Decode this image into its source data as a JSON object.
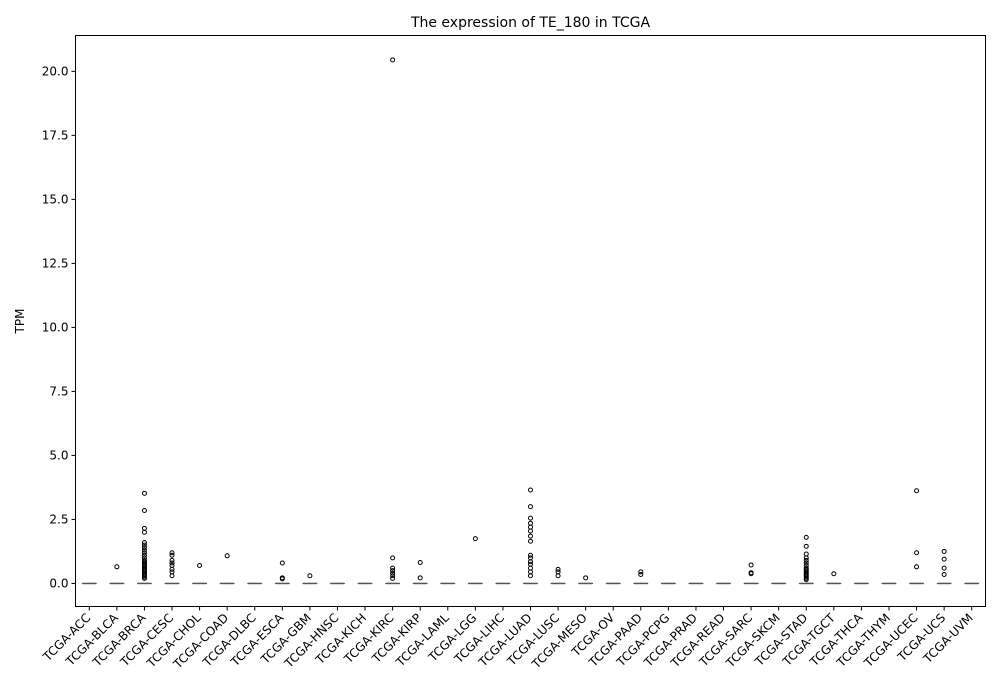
{
  "chart_data": {
    "type": "box",
    "title": "The expression of TE_180 in TCGA",
    "xlabel": "",
    "ylabel": "TPM",
    "ylim": [
      -0.9,
      21.4
    ],
    "yticks": [
      "0.0",
      "2.5",
      "5.0",
      "7.5",
      "10.0",
      "12.5",
      "15.0",
      "17.5",
      "20.0"
    ],
    "grid": false,
    "legend": "none",
    "colors": {
      "box": "#1f77b4",
      "median": "#555555",
      "flier": "#000000",
      "axes": "#000000"
    },
    "categories": [
      "TCGA-ACC",
      "TCGA-BLCA",
      "TCGA-BRCA",
      "TCGA-CESC",
      "TCGA-CHOL",
      "TCGA-COAD",
      "TCGA-DLBC",
      "TCGA-ESCA",
      "TCGA-GBM",
      "TCGA-HNSC",
      "TCGA-KICH",
      "TCGA-KIRC",
      "TCGA-KIRP",
      "TCGA-LAML",
      "TCGA-LGG",
      "TCGA-LIHC",
      "TCGA-LUAD",
      "TCGA-LUSC",
      "TCGA-MESO",
      "TCGA-OV",
      "TCGA-PAAD",
      "TCGA-PCPG",
      "TCGA-PRAD",
      "TCGA-READ",
      "TCGA-SARC",
      "TCGA-SKCM",
      "TCGA-STAD",
      "TCGA-TGCT",
      "TCGA-THCA",
      "TCGA-THYM",
      "TCGA-UCEC",
      "TCGA-UCS",
      "TCGA-UVM"
    ],
    "boxes": [
      {
        "median": 0,
        "q1": 0,
        "q3": 0,
        "whislo": 0,
        "whishi": 0,
        "fliers": []
      },
      {
        "median": 0,
        "q1": 0,
        "q3": 0,
        "whislo": 0,
        "whishi": 0,
        "fliers": [
          0.65
        ]
      },
      {
        "median": 0,
        "q1": 0,
        "q3": 0,
        "whislo": 0,
        "whishi": 0,
        "fliers": [
          3.52,
          2.85,
          2.15,
          2.0,
          1.6,
          1.5,
          1.4,
          1.3,
          1.2,
          1.1,
          1.0,
          0.9,
          0.85,
          0.8,
          0.75,
          0.7,
          0.65,
          0.6,
          0.55,
          0.5,
          0.45,
          0.4,
          0.35,
          0.3,
          0.25,
          0.2
        ]
      },
      {
        "median": 0,
        "q1": 0,
        "q3": 0,
        "whislo": 0,
        "whishi": 0,
        "fliers": [
          1.2,
          1.1,
          0.9,
          0.8,
          0.7,
          0.55,
          0.45,
          0.3
        ]
      },
      {
        "median": 0,
        "q1": 0,
        "q3": 0,
        "whislo": 0,
        "whishi": 0,
        "fliers": [
          0.7
        ]
      },
      {
        "median": 0,
        "q1": 0,
        "q3": 0,
        "whislo": 0,
        "whishi": 0,
        "fliers": [
          1.08
        ]
      },
      {
        "median": 0,
        "q1": 0,
        "q3": 0,
        "whislo": 0,
        "whishi": 0,
        "fliers": []
      },
      {
        "median": 0,
        "q1": 0,
        "q3": 0,
        "whislo": 0,
        "whishi": 0,
        "fliers": [
          0.8,
          0.22,
          0.18
        ]
      },
      {
        "median": 0,
        "q1": 0,
        "q3": 0,
        "whislo": 0,
        "whishi": 0,
        "fliers": [
          0.3
        ]
      },
      {
        "median": 0,
        "q1": 0,
        "q3": 0,
        "whislo": 0,
        "whishi": 0,
        "fliers": []
      },
      {
        "median": 0,
        "q1": 0,
        "q3": 0,
        "whislo": 0,
        "whishi": 0,
        "fliers": []
      },
      {
        "median": 0,
        "q1": 0,
        "q3": 0,
        "whislo": 0,
        "whishi": 0,
        "fliers": [
          20.45,
          1.0,
          0.6,
          0.5,
          0.4,
          0.3,
          0.2
        ]
      },
      {
        "median": 0,
        "q1": 0,
        "q3": 0,
        "whislo": 0,
        "whishi": 0,
        "fliers": [
          0.82,
          0.22
        ]
      },
      {
        "median": 0,
        "q1": 0,
        "q3": 0,
        "whislo": 0,
        "whishi": 0,
        "fliers": []
      },
      {
        "median": 0,
        "q1": 0,
        "q3": 0,
        "whislo": 0,
        "whishi": 0,
        "fliers": [
          1.75
        ]
      },
      {
        "median": 0,
        "q1": 0,
        "q3": 0,
        "whislo": 0,
        "whishi": 0,
        "fliers": []
      },
      {
        "median": 0,
        "q1": 0,
        "q3": 0,
        "whislo": 0,
        "whishi": 0,
        "fliers": [
          3.65,
          3.0,
          2.55,
          2.35,
          2.2,
          2.05,
          1.85,
          1.65,
          1.1,
          1.0,
          0.85,
          0.75,
          0.6,
          0.45,
          0.3
        ]
      },
      {
        "median": 0,
        "q1": 0,
        "q3": 0,
        "whislo": 0,
        "whishi": 0,
        "fliers": [
          0.55,
          0.45,
          0.3
        ]
      },
      {
        "median": 0,
        "q1": 0,
        "q3": 0,
        "whislo": 0,
        "whishi": 0,
        "fliers": [
          0.22
        ]
      },
      {
        "median": 0,
        "q1": 0,
        "q3": 0,
        "whislo": 0,
        "whishi": 0,
        "fliers": []
      },
      {
        "median": 0,
        "q1": 0,
        "q3": 0,
        "whislo": 0,
        "whishi": 0,
        "fliers": [
          0.45,
          0.35
        ]
      },
      {
        "median": 0,
        "q1": 0,
        "q3": 0,
        "whislo": 0,
        "whishi": 0,
        "fliers": []
      },
      {
        "median": 0,
        "q1": 0,
        "q3": 0,
        "whislo": 0,
        "whishi": 0,
        "fliers": []
      },
      {
        "median": 0,
        "q1": 0,
        "q3": 0,
        "whislo": 0,
        "whishi": 0,
        "fliers": []
      },
      {
        "median": 0,
        "q1": 0,
        "q3": 0,
        "whislo": 0,
        "whishi": 0,
        "fliers": [
          0.72,
          0.42,
          0.38
        ]
      },
      {
        "median": 0,
        "q1": 0,
        "q3": 0,
        "whislo": 0,
        "whishi": 0,
        "fliers": []
      },
      {
        "median": 0,
        "q1": 0,
        "q3": 0,
        "whislo": 0,
        "whishi": 0,
        "fliers": [
          1.8,
          1.45,
          1.15,
          1.0,
          0.9,
          0.8,
          0.7,
          0.6,
          0.55,
          0.5,
          0.45,
          0.4,
          0.35,
          0.3,
          0.25,
          0.2,
          0.15
        ]
      },
      {
        "median": 0,
        "q1": 0,
        "q3": 0,
        "whislo": 0,
        "whishi": 0,
        "fliers": [
          0.38
        ]
      },
      {
        "median": 0,
        "q1": 0,
        "q3": 0,
        "whislo": 0,
        "whishi": 0,
        "fliers": []
      },
      {
        "median": 0,
        "q1": 0,
        "q3": 0,
        "whislo": 0,
        "whishi": 0,
        "fliers": []
      },
      {
        "median": 0,
        "q1": 0,
        "q3": 0,
        "whislo": 0,
        "whishi": 0,
        "fliers": [
          3.62,
          1.2,
          0.65
        ]
      },
      {
        "median": 0,
        "q1": 0,
        "q3": 0,
        "whislo": 0,
        "whishi": 0,
        "fliers": [
          1.25,
          0.95,
          0.6,
          0.35
        ]
      },
      {
        "median": 0,
        "q1": 0,
        "q3": 0,
        "whislo": 0,
        "whishi": 0,
        "fliers": []
      }
    ]
  }
}
